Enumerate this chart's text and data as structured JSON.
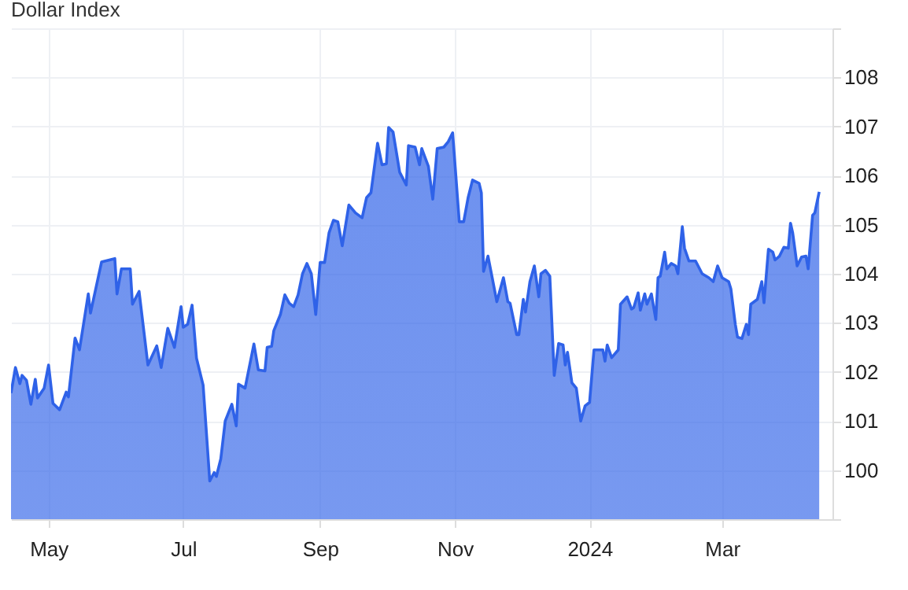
{
  "chart_data": {
    "type": "area",
    "title": "Dollar Index",
    "x": [
      "2023-04-14",
      "2023-04-16",
      "2023-04-18",
      "2023-04-19",
      "2023-04-21",
      "2023-04-23",
      "2023-04-25",
      "2023-04-26",
      "2023-04-29",
      "2023-05-01",
      "2023-05-03",
      "2023-05-06",
      "2023-05-09",
      "2023-05-10",
      "2023-05-13",
      "2023-05-15",
      "2023-05-19",
      "2023-05-20",
      "2023-05-25",
      "2023-05-31",
      "2023-06-01",
      "2023-06-03",
      "2023-06-07",
      "2023-06-08",
      "2023-06-11",
      "2023-06-15",
      "2023-06-19",
      "2023-06-21",
      "2023-06-24",
      "2023-06-27",
      "2023-06-30",
      "2023-07-01",
      "2023-07-03",
      "2023-07-05",
      "2023-07-07",
      "2023-07-10",
      "2023-07-13",
      "2023-07-15",
      "2023-07-16",
      "2023-07-18",
      "2023-07-20",
      "2023-07-23",
      "2023-07-25",
      "2023-07-26",
      "2023-07-29",
      "2023-08-02",
      "2023-08-04",
      "2023-08-07",
      "2023-08-08",
      "2023-08-10",
      "2023-08-11",
      "2023-08-14",
      "2023-08-16",
      "2023-08-18",
      "2023-08-20",
      "2023-08-22",
      "2023-08-24",
      "2023-08-26",
      "2023-08-28",
      "2023-08-30",
      "2023-09-01",
      "2023-09-03",
      "2023-09-05",
      "2023-09-07",
      "2023-09-09",
      "2023-09-11",
      "2023-09-14",
      "2023-09-17",
      "2023-09-20",
      "2023-09-22",
      "2023-09-24",
      "2023-09-27",
      "2023-09-29",
      "2023-10-01",
      "2023-10-02",
      "2023-10-04",
      "2023-10-07",
      "2023-10-10",
      "2023-10-11",
      "2023-10-14",
      "2023-10-16",
      "2023-10-17",
      "2023-10-20",
      "2023-10-22",
      "2023-10-24",
      "2023-10-27",
      "2023-10-29",
      "2023-10-31",
      "2023-11-03",
      "2023-11-05",
      "2023-11-07",
      "2023-11-09",
      "2023-11-12",
      "2023-11-13",
      "2023-11-14",
      "2023-11-16",
      "2023-11-18",
      "2023-11-20",
      "2023-11-23",
      "2023-11-25",
      "2023-11-26",
      "2023-11-29",
      "2023-11-30",
      "2023-12-02",
      "2023-12-03",
      "2023-12-05",
      "2023-12-07",
      "2023-12-09",
      "2023-12-10",
      "2023-12-12",
      "2023-12-14",
      "2023-12-16",
      "2023-12-18",
      "2023-12-20",
      "2023-12-21",
      "2023-12-22",
      "2023-12-24",
      "2023-12-26",
      "2023-12-28",
      "2023-12-30",
      "2024-01-01",
      "2024-01-03",
      "2024-01-05",
      "2024-01-07",
      "2024-01-08",
      "2024-01-09",
      "2024-01-11",
      "2024-01-14",
      "2024-01-15",
      "2024-01-18",
      "2024-01-20",
      "2024-01-21",
      "2024-01-23",
      "2024-01-24",
      "2024-01-26",
      "2024-01-27",
      "2024-01-29",
      "2024-01-31",
      "2024-02-01",
      "2024-02-02",
      "2024-02-04",
      "2024-02-05",
      "2024-02-07",
      "2024-02-09",
      "2024-02-10",
      "2024-02-12",
      "2024-02-13",
      "2024-02-15",
      "2024-02-18",
      "2024-02-21",
      "2024-02-24",
      "2024-02-26",
      "2024-02-28",
      "2024-03-01",
      "2024-03-04",
      "2024-03-05",
      "2024-03-07",
      "2024-03-08",
      "2024-03-10",
      "2024-03-12",
      "2024-03-13",
      "2024-03-14",
      "2024-03-17",
      "2024-03-19",
      "2024-03-20",
      "2024-03-22",
      "2024-03-24",
      "2024-03-25",
      "2024-03-27",
      "2024-03-29",
      "2024-03-31",
      "2024-04-01",
      "2024-04-02",
      "2024-04-04",
      "2024-04-06",
      "2024-04-08",
      "2024-04-09",
      "2024-04-11",
      "2024-04-12",
      "2024-04-14"
    ],
    "series": [
      {
        "color": "#2f62e8",
        "values": [
          101.57,
          102.09,
          101.76,
          101.93,
          101.83,
          101.34,
          101.85,
          101.47,
          101.67,
          102.14,
          101.36,
          101.23,
          101.59,
          101.49,
          102.69,
          102.45,
          103.59,
          103.2,
          104.24,
          104.31,
          103.59,
          104.1,
          104.1,
          103.38,
          103.64,
          102.14,
          102.53,
          102.09,
          102.89,
          102.5,
          103.33,
          102.91,
          102.97,
          103.36,
          102.28,
          101.73,
          99.78,
          99.95,
          99.87,
          100.23,
          101.0,
          101.34,
          100.9,
          101.75,
          101.67,
          102.57,
          102.04,
          102.02,
          102.5,
          102.52,
          102.84,
          103.17,
          103.57,
          103.4,
          103.33,
          103.57,
          104.0,
          104.21,
          104.0,
          103.17,
          104.23,
          104.23,
          104.83,
          105.09,
          105.06,
          104.57,
          105.4,
          105.24,
          105.14,
          105.55,
          105.65,
          106.66,
          106.22,
          106.24,
          106.98,
          106.89,
          106.07,
          105.81,
          106.61,
          106.58,
          106.22,
          106.55,
          106.19,
          105.52,
          106.55,
          106.58,
          106.69,
          106.87,
          105.06,
          105.06,
          105.55,
          105.91,
          105.84,
          105.65,
          104.05,
          104.36,
          103.9,
          103.43,
          103.92,
          103.43,
          103.4,
          102.76,
          102.76,
          103.48,
          103.22,
          103.84,
          104.16,
          103.53,
          104.0,
          104.07,
          103.95,
          101.93,
          102.58,
          102.55,
          102.14,
          102.4,
          101.78,
          101.67,
          101.0,
          101.31,
          101.38,
          102.45,
          102.45,
          102.45,
          102.22,
          102.55,
          102.29,
          102.45,
          103.38,
          103.53,
          103.28,
          103.31,
          103.61,
          103.26,
          103.59,
          103.38,
          103.59,
          103.07,
          103.92,
          103.95,
          104.44,
          104.1,
          104.21,
          104.16,
          104.0,
          104.96,
          104.52,
          104.26,
          104.26,
          104.0,
          103.92,
          103.84,
          104.16,
          103.92,
          103.84,
          103.69,
          102.97,
          102.71,
          102.68,
          102.97,
          102.76,
          103.38,
          103.48,
          103.84,
          103.41,
          104.5,
          104.44,
          104.28,
          104.36,
          104.54,
          104.52,
          105.03,
          104.83,
          104.16,
          104.34,
          104.36,
          104.1,
          105.19,
          105.24,
          105.67
        ]
      }
    ],
    "xlim": [
      "2023-04-14",
      "2024-04-20"
    ],
    "xticks": [
      {
        "value": "2023-05-01",
        "label": "May"
      },
      {
        "value": "2023-07-01",
        "label": "Jul"
      },
      {
        "value": "2023-09-01",
        "label": "Sep"
      },
      {
        "value": "2023-11-01",
        "label": "Nov"
      },
      {
        "value": "2024-01-01",
        "label": "2024"
      },
      {
        "value": "2024-03-01",
        "label": "Mar"
      }
    ],
    "ylim": [
      99,
      109
    ],
    "yticks": [
      {
        "value": 99,
        "label": null
      },
      100,
      101,
      102,
      103,
      104,
      105,
      106,
      107,
      108,
      {
        "value": 109,
        "label": null
      }
    ],
    "grid": true
  }
}
